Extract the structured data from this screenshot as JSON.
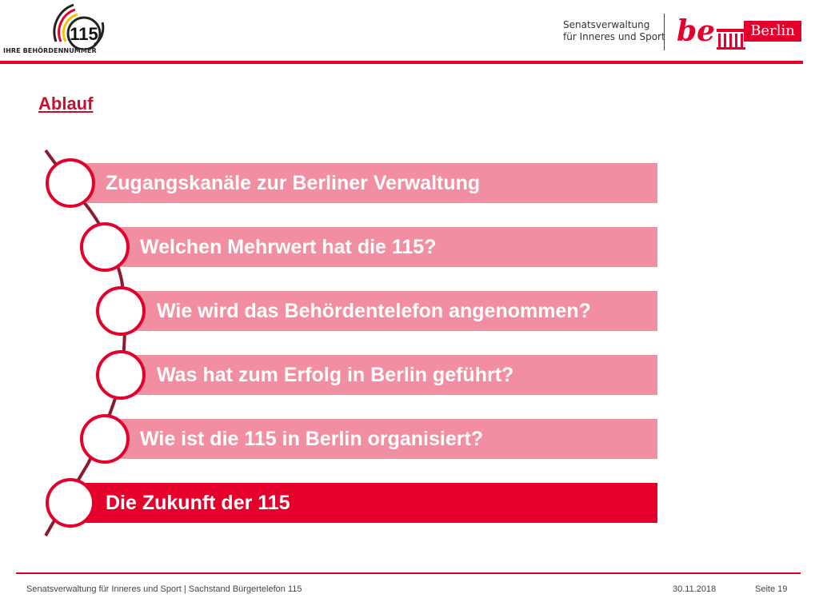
{
  "header": {
    "logo_number": "115",
    "logo_caption": "IHRE BEHÖRDENNUMMER",
    "department_line1": "Senatsverwaltung",
    "department_line2": "für Inneres und Sport",
    "be_logo_text": "be",
    "berlin_logo_text": "Berlin"
  },
  "colors": {
    "accent": "#e3002c",
    "bar_light": "#f28ea1",
    "bar_active": "#e4002b"
  },
  "section_title": "Ablauf",
  "agenda": [
    {
      "label": "Zugangskanäle zur Berliner Verwaltung",
      "active": false
    },
    {
      "label": "Welchen Mehrwert hat die 115?",
      "active": false
    },
    {
      "label": "Wie wird das Behördentelefon angenommen?",
      "active": false
    },
    {
      "label": "Was hat zum Erfolg in Berlin geführt?",
      "active": false
    },
    {
      "label": "Wie ist die 115 in Berlin organisiert?",
      "active": false
    },
    {
      "label": "Die Zukunft der 115",
      "active": true
    }
  ],
  "footer": {
    "left_text": "Senatsverwaltung für Inneres und Sport | Sachstand Bürgertelefon 115",
    "date": "30.11.2018",
    "page": "Seite 19"
  }
}
